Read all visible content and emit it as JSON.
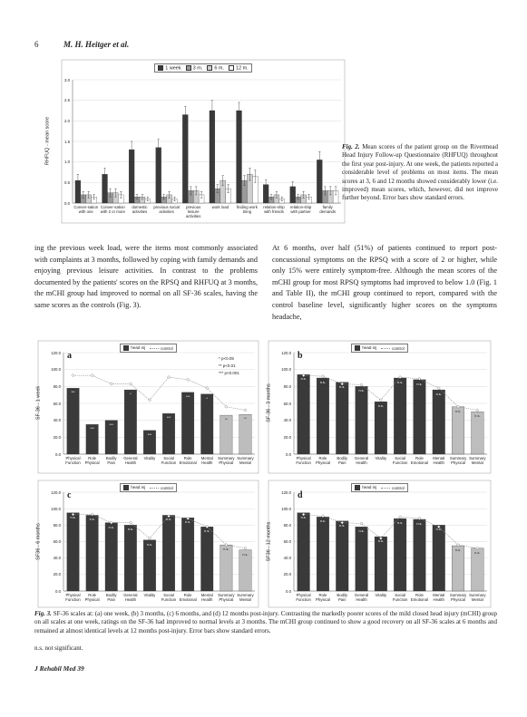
{
  "header": {
    "page": "6",
    "authors": "M. H. Heitger et al."
  },
  "chart_data": [
    {
      "type": "bar",
      "legend_position": "top",
      "grid": true,
      "ylabel": "RHFUQ - mean score",
      "ylim": [
        0,
        3
      ],
      "yticks": [
        {
          "value": 0,
          "label": "0.0"
        },
        0.5,
        {
          "value": 1,
          "label": "1.0"
        },
        1.5,
        {
          "value": 2,
          "label": "2.0"
        },
        2.5,
        {
          "value": 3,
          "label": "3.0"
        }
      ],
      "categories": [
        "Conver-sation with one",
        "Conver-sation with 2 or more",
        "domestic activities",
        "previous social activities",
        "previous leisure activities",
        "work load",
        "finding work tiring",
        "relation-ship with friends",
        "relation-ship with partner",
        "family demands"
      ],
      "series": [
        {
          "name": "1 week",
          "color": "#3a3a3a",
          "values": [
            0.55,
            0.7,
            1.3,
            1.35,
            2.15,
            2.25,
            2.25,
            0.45,
            0.4,
            1.05
          ],
          "errors": [
            0.15,
            0.15,
            0.2,
            0.2,
            0.2,
            0.25,
            0.2,
            0.12,
            0.12,
            0.2
          ]
        },
        {
          "name": "3 m.",
          "color": "#9a9a9a",
          "values": [
            0.2,
            0.25,
            0.15,
            0.15,
            0.3,
            0.35,
            0.55,
            0.15,
            0.15,
            0.3
          ],
          "errors": [
            0.08,
            0.1,
            0.06,
            0.06,
            0.1,
            0.1,
            0.12,
            0.06,
            0.06,
            0.1
          ]
        },
        {
          "name": "6 m.",
          "color": "#cfcfcf",
          "values": [
            0.2,
            0.25,
            0.15,
            0.2,
            0.3,
            0.55,
            0.7,
            0.2,
            0.2,
            0.3
          ],
          "errors": [
            0.08,
            0.1,
            0.06,
            0.08,
            0.1,
            0.12,
            0.15,
            0.08,
            0.08,
            0.1
          ]
        },
        {
          "name": "12 m.",
          "color": "#ffffff",
          "values": [
            0.15,
            0.2,
            0.1,
            0.1,
            0.2,
            0.35,
            0.65,
            0.1,
            0.15,
            0.3
          ],
          "errors": [
            0.06,
            0.08,
            0.05,
            0.05,
            0.08,
            0.1,
            0.15,
            0.05,
            0.06,
            0.1
          ]
        }
      ]
    },
    {
      "type": "combo",
      "panel": "a",
      "legend_position": "top",
      "grid": true,
      "ylabel": "SF-36 - 1 week",
      "ylim": [
        0,
        120
      ],
      "yticks": [
        {
          "value": 0,
          "label": "0.0"
        },
        {
          "value": 20,
          "label": "20.0"
        },
        {
          "value": 40,
          "label": "40.0"
        },
        {
          "value": 60,
          "label": "60.0"
        },
        {
          "value": 80,
          "label": "80.0"
        },
        {
          "value": 100,
          "label": "100.0"
        },
        {
          "value": 120,
          "label": "120.0"
        }
      ],
      "significance": [
        "* p<0.05",
        "** p<0.01",
        "*** p<0.001"
      ],
      "categories": [
        "Physical Function",
        "Role Physical",
        "Bodily Pain",
        "General Health",
        "Vitality",
        "Social Function",
        "Role Emotional",
        "Mental Health",
        "Summary Physical",
        "Summary Mental"
      ],
      "series": [
        {
          "name": "head inj",
          "type": "bar",
          "color": "#3a3a3a",
          "bar_colors": [
            "#3a3a3a",
            "#3a3a3a",
            "#3a3a3a",
            "#3a3a3a",
            "#3a3a3a",
            "#3a3a3a",
            "#3a3a3a",
            "#3a3a3a",
            "#bdbdbd",
            "#bdbdbd"
          ],
          "values": [
            78,
            35,
            40,
            76,
            28,
            48,
            73,
            71,
            46,
            47
          ],
          "annotations": [
            "***",
            "***",
            "***",
            "*",
            "***",
            "***",
            "***",
            "*",
            "**",
            "**"
          ]
        },
        {
          "name": "control",
          "type": "line",
          "color": "#888888",
          "values": [
            93,
            93,
            83,
            83,
            64,
            91,
            88,
            78,
            56,
            52
          ]
        }
      ]
    },
    {
      "type": "combo",
      "panel": "b",
      "legend_position": "top",
      "grid": true,
      "ylabel": "SF-36 - 3 months",
      "ylim": [
        0,
        120
      ],
      "yticks": [
        {
          "value": 0,
          "label": "0.0"
        },
        {
          "value": 20,
          "label": "20.0"
        },
        {
          "value": 40,
          "label": "40.0"
        },
        {
          "value": 60,
          "label": "60.0"
        },
        {
          "value": 80,
          "label": "80.0"
        },
        {
          "value": 100,
          "label": "100.0"
        },
        {
          "value": 120,
          "label": "120.0"
        }
      ],
      "categories": [
        "Physical Function",
        "Role Physical",
        "Bodily Pain",
        "General Health",
        "Vitality",
        "Social Function",
        "Role Emotional",
        "Mental Health",
        "Summary Physical",
        "Summary Mental"
      ],
      "series": [
        {
          "name": "head inj",
          "type": "bar",
          "color": "#3a3a3a",
          "bar_colors": [
            "#3a3a3a",
            "#3a3a3a",
            "#3a3a3a",
            "#3a3a3a",
            "#3a3a3a",
            "#3a3a3a",
            "#3a3a3a",
            "#3a3a3a",
            "#bdbdbd",
            "#bdbdbd"
          ],
          "values": [
            94,
            90,
            85,
            80,
            62,
            90,
            88,
            76,
            56,
            50
          ],
          "annotations": [
            "n.s.",
            "n.s.",
            "n.s.",
            "n.s.",
            "n.s.",
            "n.s.",
            "n.s.",
            "n.s.",
            "n.s.",
            "n.s."
          ]
        },
        {
          "name": "control",
          "type": "line",
          "color": "#888888",
          "values": [
            93,
            92,
            83,
            82,
            64,
            91,
            89,
            78,
            56,
            52
          ]
        }
      ]
    },
    {
      "type": "combo",
      "panel": "c",
      "legend_position": "top",
      "grid": true,
      "ylabel": "SF36 - 6 months",
      "ylim": [
        0,
        120
      ],
      "yticks": [
        {
          "value": 0,
          "label": "0.0"
        },
        {
          "value": 20,
          "label": "20.0"
        },
        {
          "value": 40,
          "label": "40.0"
        },
        {
          "value": 60,
          "label": "60.0"
        },
        {
          "value": 80,
          "label": "80.0"
        },
        {
          "value": 100,
          "label": "100.0"
        },
        {
          "value": 120,
          "label": "120.0"
        }
      ],
      "categories": [
        "Physical Function",
        "Role Physical",
        "Bodily Pain",
        "General Health",
        "Vitality",
        "Social Function",
        "Role Emotional",
        "Mental Health",
        "Summary Physical",
        "Summary Mental"
      ],
      "series": [
        {
          "name": "head inj",
          "type": "bar",
          "color": "#3a3a3a",
          "bar_colors": [
            "#3a3a3a",
            "#3a3a3a",
            "#3a3a3a",
            "#3a3a3a",
            "#3a3a3a",
            "#3a3a3a",
            "#3a3a3a",
            "#3a3a3a",
            "#bdbdbd",
            "#bdbdbd"
          ],
          "values": [
            95,
            92,
            83,
            80,
            62,
            92,
            89,
            78,
            56,
            50
          ],
          "annotations": [
            "n.s.",
            "n.s.",
            "n.s.",
            "n.s.",
            "n.s.",
            "n.s.",
            "n.s.",
            "n.s.",
            "n.s.",
            "n.s."
          ]
        },
        {
          "name": "control",
          "type": "line",
          "color": "#888888",
          "values": [
            93,
            93,
            83,
            83,
            64,
            91,
            88,
            78,
            56,
            52
          ]
        }
      ]
    },
    {
      "type": "combo",
      "panel": "d",
      "legend_position": "top",
      "grid": true,
      "ylabel": "SF36 - 12 months",
      "ylim": [
        0,
        120
      ],
      "yticks": [
        {
          "value": 0,
          "label": "0.0"
        },
        {
          "value": 20,
          "label": "20.0"
        },
        {
          "value": 40,
          "label": "40.0"
        },
        {
          "value": 60,
          "label": "60.0"
        },
        {
          "value": 80,
          "label": "80.0"
        },
        {
          "value": 100,
          "label": "100.0"
        },
        {
          "value": 120,
          "label": "120.0"
        }
      ],
      "categories": [
        "Physical Function",
        "Role Physical",
        "Bodily Pain",
        "General Health",
        "Vitality",
        "Social Function",
        "Role Emotional",
        "Mental Health",
        "Summary Physical",
        "Summary Mental"
      ],
      "series": [
        {
          "name": "head inj",
          "type": "bar",
          "color": "#3a3a3a",
          "bar_colors": [
            "#3a3a3a",
            "#3a3a3a",
            "#3a3a3a",
            "#3a3a3a",
            "#3a3a3a",
            "#3a3a3a",
            "#3a3a3a",
            "#3a3a3a",
            "#bdbdbd",
            "#bdbdbd"
          ],
          "values": [
            95,
            90,
            85,
            78,
            66,
            88,
            87,
            80,
            55,
            52
          ],
          "annotations": [
            "n.s.",
            "n.s.",
            "n.s.",
            "n.s.",
            "n.s.",
            "n.s.",
            "n.s.",
            "n.s.",
            "n.s.",
            "n.s."
          ]
        },
        {
          "name": "control",
          "type": "line",
          "color": "#888888",
          "values": [
            93,
            91,
            83,
            82,
            64,
            90,
            88,
            78,
            56,
            52
          ]
        }
      ]
    }
  ],
  "captions": {
    "figure2": {
      "label": "Fig. 2.",
      "text": "Mean scores of the patient group on the Rivermead Head Injury Follow-up Questionnaire (RHFUQ) throughout the first year post-injury. At one week, the patients reported a considerable level of problems on most items. The mean scores at 3, 6 and 12 months showed considerably lower (i.e. improved) mean scores, which, however, did not improve further beyond. Error bars show standard errors."
    },
    "figure3": {
      "label": "Fig. 3.",
      "text": "SF-36 scales at: (a) one week, (b) 3 months, (c) 6 months, and (d) 12 months post-injury. Contrasting the markedly poorer scores of the mild closed head injury (mCHI) group on all scales at one week, ratings on the SF-36 had improved to normal levels at 3 months. The mCHI group continued to show a good recovery on all SF-36 scales at 6 months and remained at almost identical levels at 12 months post-injury. Error bars show standard errors.",
      "note": "n.s. not significant."
    }
  },
  "body": {
    "left": "ing the previous week load, were the items most commonly associated with complaints at 3 months, followed by coping with family demands and enjoying previous leisure activities. In contrast to the problems documented by the patients' scores on the RPSQ and RHFUQ at 3 months, the mCHI group had improved to normal on all SF-36 scales, having the same scores as the controls (Fig. 3).",
    "right": "At 6 months, over half (51%) of patients continued to report post-concussional symptoms on the RPSQ with a score of 2 or higher, while only 15% were entirely symptom-free. Although the mean scores of the mCHI group for most RPSQ symptoms had improved to below 1.0 (Fig. 1 and Table II), the mCHI group continued to report, compared with the control baseline level, significantly higher scores on the symptoms headache,"
  },
  "footer": {
    "journal": "J Rehabil Med 39"
  }
}
